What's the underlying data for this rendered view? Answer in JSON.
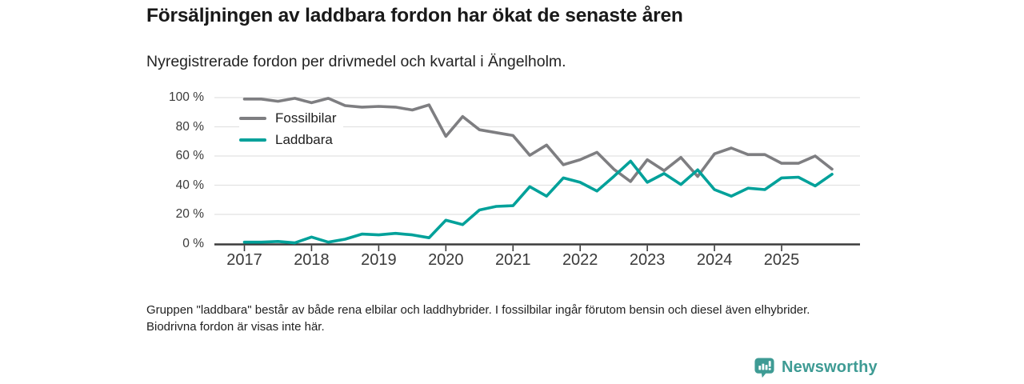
{
  "header": {
    "title": "Försäljningen av laddbara fordon har ökat de senaste åren",
    "subtitle": "Nyregistrerade fordon per drivmedel och kvartal i Ängelholm."
  },
  "footnote": {
    "text": "Gruppen \"laddbara\" består av både rena elbilar och laddhybrider. I fossilbilar ingår förutom bensin och diesel även elhybrider. Biodrivna fordon är visas inte här."
  },
  "brand": {
    "name": "Newsworthy",
    "logo_icon": "bar-chart-speech-bubble-pin",
    "color": "#3e9b94"
  },
  "chart_data": {
    "type": "line",
    "title": "Försäljningen av laddbara fordon har ökat de senaste åren",
    "xlabel": "",
    "ylabel": "",
    "x_unit": "quarter",
    "categories": [
      "2017 Q1",
      "2017 Q2",
      "2017 Q3",
      "2017 Q4",
      "2018 Q1",
      "2018 Q2",
      "2018 Q3",
      "2018 Q4",
      "2019 Q1",
      "2019 Q2",
      "2019 Q3",
      "2019 Q4",
      "2020 Q1",
      "2020 Q2",
      "2020 Q3",
      "2020 Q4",
      "2021 Q1",
      "2021 Q2",
      "2021 Q3",
      "2021 Q4",
      "2022 Q1",
      "2022 Q2",
      "2022 Q3",
      "2022 Q4",
      "2023 Q1",
      "2023 Q2",
      "2023 Q3",
      "2023 Q4",
      "2024 Q1",
      "2024 Q2",
      "2024 Q3",
      "2024 Q4",
      "2025 Q1",
      "2025 Q2",
      "2025 Q3",
      "2025 Q4"
    ],
    "series": [
      {
        "name": "Fossilbilar",
        "color": "#7e7e81",
        "values": [
          99,
          99,
          97.5,
          99.5,
          96.5,
          99.5,
          94.5,
          93.5,
          94,
          93.5,
          91.5,
          95,
          73.5,
          87,
          78,
          76,
          74,
          60.5,
          67.5,
          54,
          57.5,
          62.5,
          51,
          42.5,
          57.5,
          50,
          59,
          46,
          61.5,
          65.5,
          61,
          61,
          55,
          55,
          60,
          51
        ]
      },
      {
        "name": "Laddbara",
        "color": "#00a19a",
        "values": [
          1,
          1,
          1.5,
          0.5,
          4.5,
          1,
          3,
          6.5,
          6,
          7,
          6,
          4,
          16,
          13,
          23,
          25.5,
          26,
          39,
          32.5,
          45,
          42,
          36,
          46,
          56.5,
          42,
          48,
          40.5,
          50.5,
          37,
          32.5,
          38,
          37,
          45,
          45.5,
          39.5,
          47.5
        ]
      }
    ],
    "ylim": [
      0,
      100
    ],
    "yticks": [
      0,
      20,
      40,
      60,
      80,
      100
    ],
    "ytick_suffix": " %",
    "xticks": [
      "2017",
      "2018",
      "2019",
      "2020",
      "2021",
      "2022",
      "2023",
      "2024",
      "2025"
    ],
    "grid": "horizontal",
    "legend_position": "inside-top-left"
  }
}
